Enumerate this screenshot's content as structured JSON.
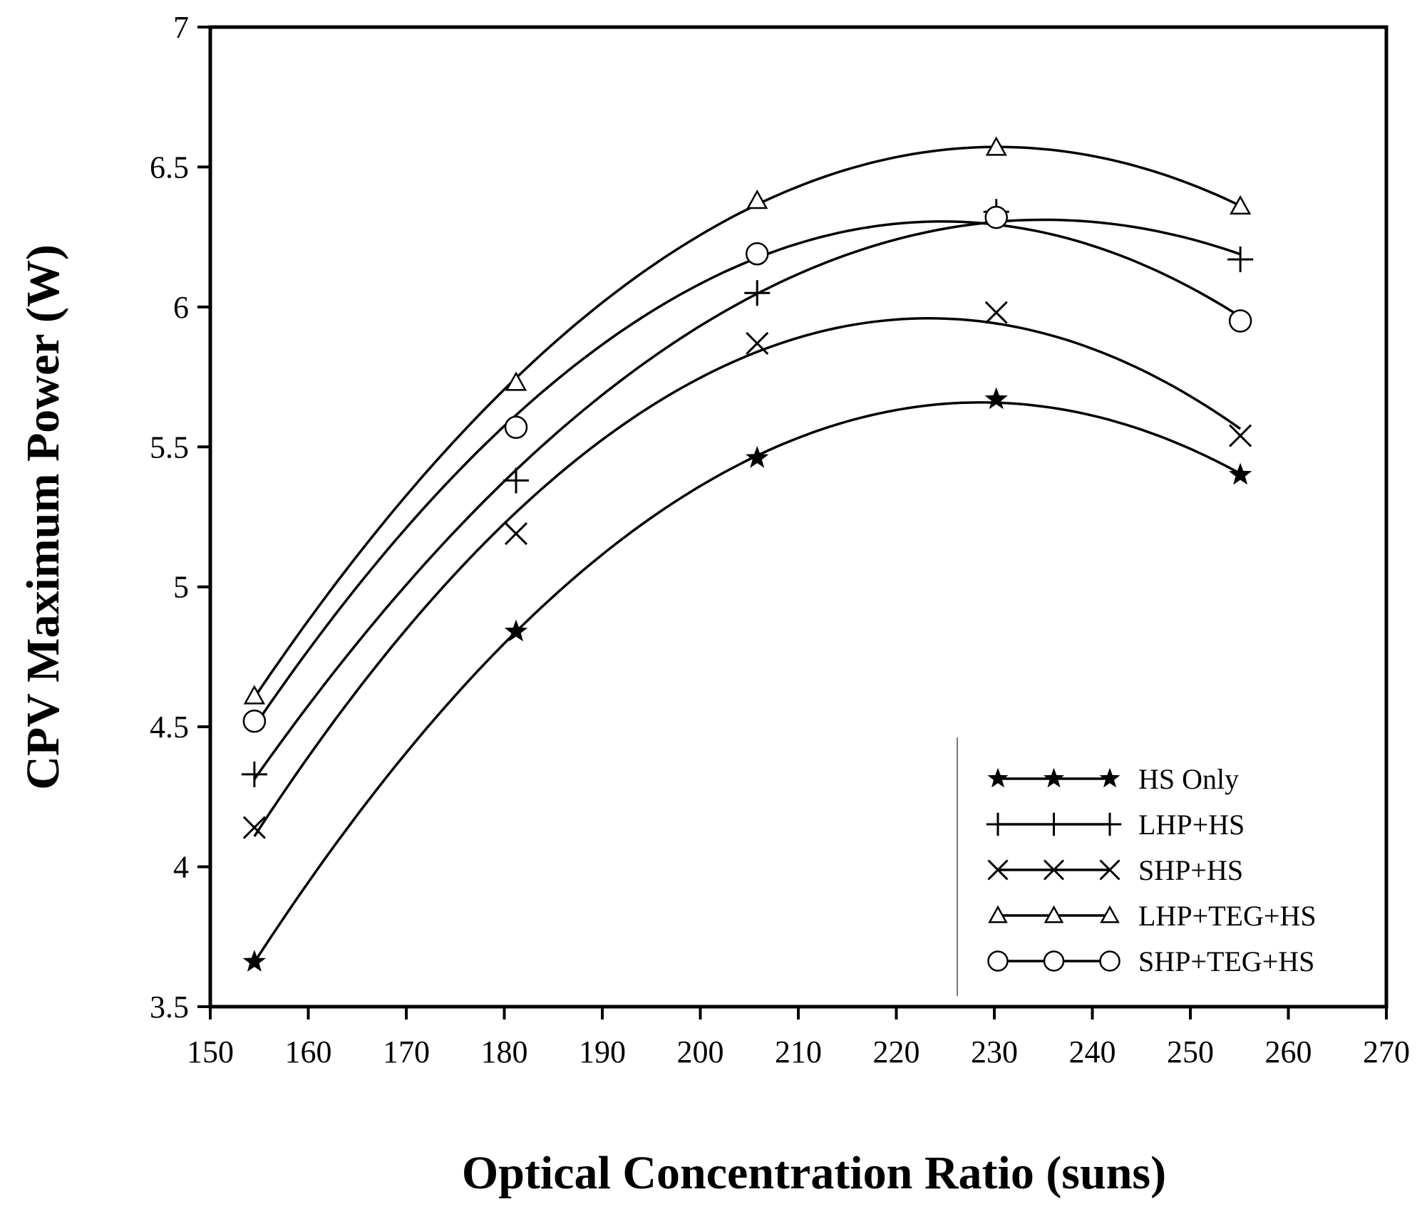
{
  "chart_data": {
    "type": "line",
    "title": "",
    "xlabel": "Optical Concentration Ratio (suns)",
    "ylabel": "CPV Maximum Power (W)",
    "xlim": [
      150,
      270
    ],
    "ylim": [
      3.5,
      7
    ],
    "xticks": [
      "150",
      "160",
      "170",
      "180",
      "190",
      "200",
      "210",
      "220",
      "230",
      "240",
      "250",
      "260",
      "270"
    ],
    "yticks": [
      "3.5",
      "4",
      "4.5",
      "5",
      "5.5",
      "6",
      "6.5",
      "7"
    ],
    "grid": false,
    "legend_position": "bottom-right",
    "x": [
      154.5,
      181.2,
      205.8,
      230.2,
      255.1
    ],
    "series": [
      {
        "name": "HS Only",
        "marker": "star",
        "values": [
          3.66,
          4.84,
          5.46,
          5.67,
          5.4
        ]
      },
      {
        "name": "LHP+HS",
        "marker": "plus",
        "values": [
          4.33,
          5.38,
          6.05,
          6.34,
          6.17
        ]
      },
      {
        "name": "SHP+HS",
        "marker": "cross",
        "values": [
          4.14,
          5.19,
          5.87,
          5.98,
          5.54
        ]
      },
      {
        "name": "LHP+TEG+HS",
        "marker": "triangle",
        "values": [
          4.61,
          5.73,
          6.38,
          6.57,
          6.36
        ]
      },
      {
        "name": "SHP+TEG+HS",
        "marker": "circle",
        "values": [
          4.52,
          5.57,
          6.19,
          6.32,
          5.95
        ]
      }
    ]
  }
}
